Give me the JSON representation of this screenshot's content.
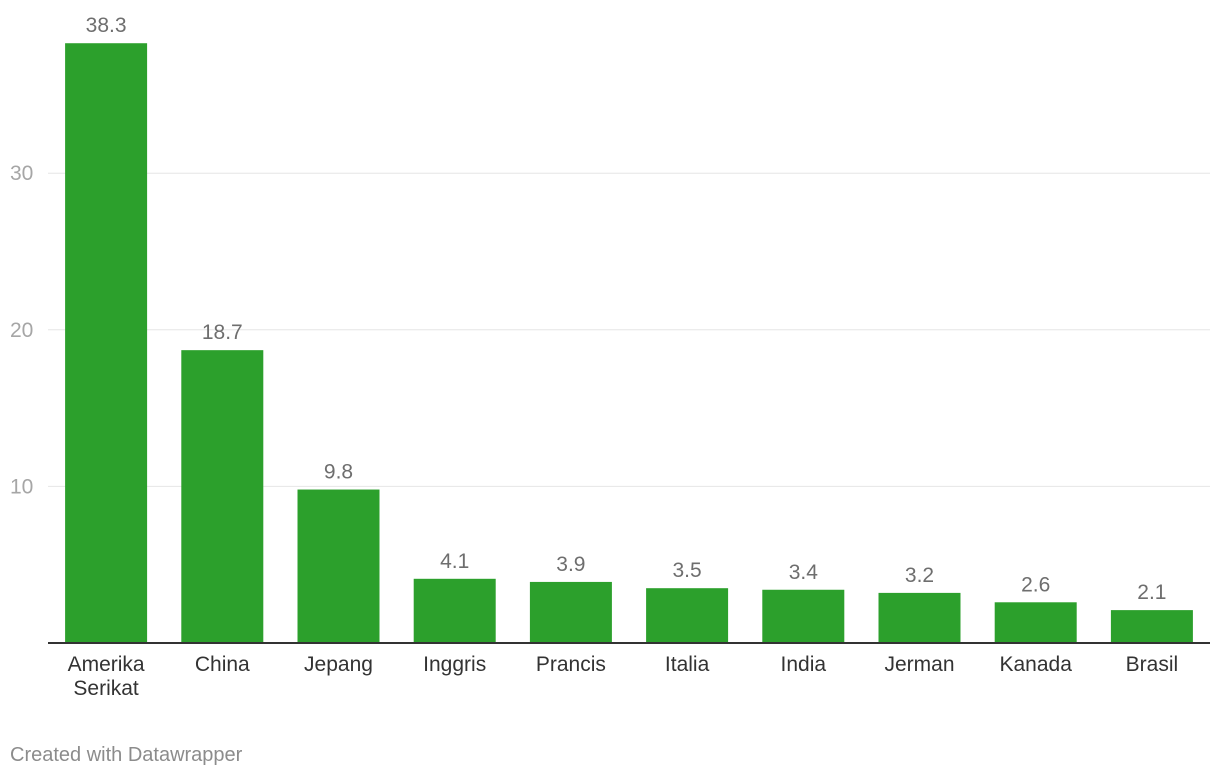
{
  "chart_data": {
    "type": "bar",
    "categories": [
      "Amerika Serikat",
      "China",
      "Jepang",
      "Inggris",
      "Prancis",
      "Italia",
      "India",
      "Jerman",
      "Kanada",
      "Brasil"
    ],
    "category_lines": [
      [
        "Amerika",
        "Serikat"
      ],
      [
        "China"
      ],
      [
        "Jepang"
      ],
      [
        "Inggris"
      ],
      [
        "Prancis"
      ],
      [
        "Italia"
      ],
      [
        "India"
      ],
      [
        "Jerman"
      ],
      [
        "Kanada"
      ],
      [
        "Brasil"
      ]
    ],
    "values": [
      38.3,
      18.7,
      9.8,
      4.1,
      3.9,
      3.5,
      3.4,
      3.2,
      2.6,
      2.1
    ],
    "value_labels": [
      "38.3",
      "18.7",
      "9.8",
      "4.1",
      "3.9",
      "3.5",
      "3.4",
      "3.2",
      "2.6",
      "2.1"
    ],
    "yticks": [
      10,
      20,
      30
    ],
    "ytick_labels": [
      "10",
      "20",
      "30"
    ],
    "ylim": [
      0,
      40
    ],
    "title": "",
    "xlabel": "",
    "ylabel": "",
    "grid": true,
    "colors": {
      "bar": "#2ca02c",
      "grid": "#e6e6e6",
      "axis": "#333333",
      "tick_text": "#a6a6a6",
      "value_text": "#6e6e6e",
      "category_text": "#333333"
    }
  },
  "footer": {
    "credit": "Created with Datawrapper"
  }
}
